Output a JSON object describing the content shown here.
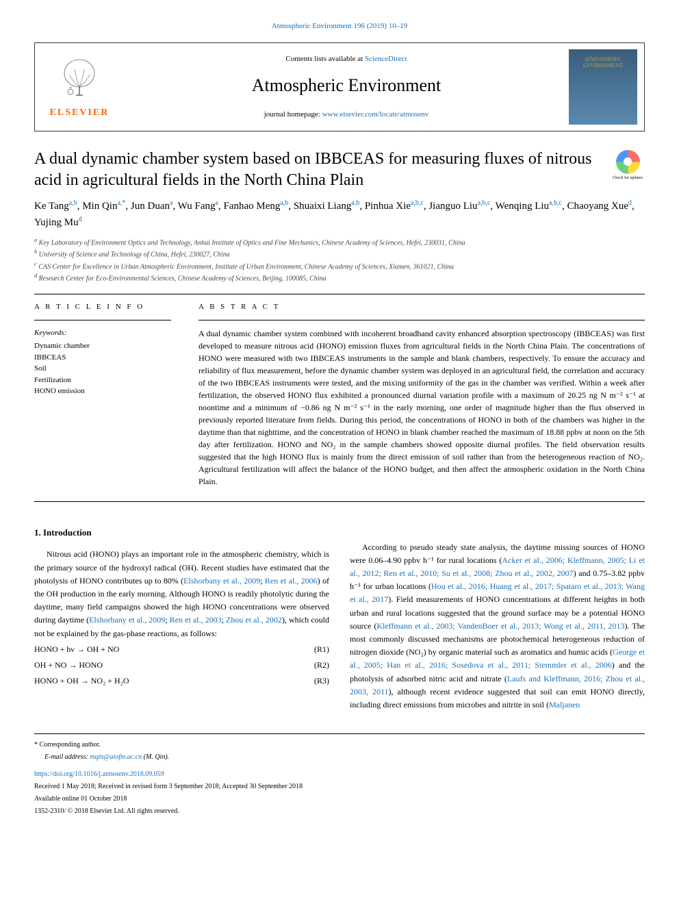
{
  "top_link": "Atmospheric Environment 196 (2019) 10–19",
  "header": {
    "contents_text": "Contents lists available at ",
    "contents_link": "ScienceDirect",
    "journal_name": "Atmospheric Environment",
    "homepage_label": "journal homepage: ",
    "homepage_link": "www.elsevier.com/locate/atmosenv",
    "elsevier_label": "ELSEVIER",
    "cover_title": "ATMOSPHERIC ENVIRONMENT"
  },
  "article": {
    "title": "A dual dynamic chamber system based on IBBCEAS for measuring fluxes of nitrous acid in agricultural fields in the North China Plain",
    "check_updates": "Check for updates"
  },
  "authors_html": "Ke Tang<sup class='sup'>a,b</sup>, Min Qin<sup class='sup'>a,*</sup>, Jun Duan<sup class='sup'>a</sup>, Wu Fang<sup class='sup'>a</sup>, Fanhao Meng<sup class='sup'>a,b</sup>, Shuaixi Liang<sup class='sup'>a,b</sup>, Pinhua Xie<sup class='sup'>a,b,c</sup>, Jianguo Liu<sup class='sup'>a,b,c</sup>, Wenqing Liu<sup class='sup'>a,b,c</sup>, Chaoyang Xue<sup class='sup'>d</sup>, Yujing Mu<sup class='sup'>d</sup>",
  "affiliations": [
    "a Key Laboratory of Environment Optics and Technology, Anhui Institute of Optics and Fine Mechanics, Chinese Academy of Sciences, Hefei, 230031, China",
    "b University of Science and Technology of China, Hefei, 230027, China",
    "c CAS Center for Excellence in Urban Atmospheric Environment, Institute of Urban Environment, Chinese Academy of Sciences, Xiamen, 361021, China",
    "d Research Center for Eco-Environmental Sciences, Chinese Academy of Sciences, Beijing, 100085, China"
  ],
  "article_info_label": "A R T I C L E  I N F O",
  "abstract_label": "A B S T R A C T",
  "keywords_label": "Keywords:",
  "keywords": [
    "Dynamic chamber",
    "IBBCEAS",
    "Soil",
    "Fertilization",
    "HONO emission"
  ],
  "abstract": "A dual dynamic chamber system combined with incoherent broadband cavity enhanced absorption spectroscopy (IBBCEAS) was first developed to measure nitrous acid (HONO) emission fluxes from agricultural fields in the North China Plain. The concentrations of HONO were measured with two IBBCEAS instruments in the sample and blank chambers, respectively. To ensure the accuracy and reliability of flux measurement, before the dynamic chamber system was deployed in an agricultural field, the correlation and accuracy of the two IBBCEAS instruments were tested, and the mixing uniformity of the gas in the chamber was verified. Within a week after fertilization, the observed HONO flux exhibited a pronounced diurnal variation profile with a maximum of 20.25 ng N m⁻² s⁻¹ at noontime and a minimum of −0.86 ng N m⁻² s⁻¹ in the early morning, one order of magnitude higher than the flux observed in previously reported literature from fields. During this period, the concentrations of HONO in both of the chambers was higher in the daytime than that nighttime, and the concentration of HONO in blank chamber reached the maximum of 18.88 ppbv at noon on the 5th day after fertilization. HONO and NO₂ in the sample chambers showed opposite diurnal profiles. The field observation results suggested that the high HONO flux is mainly from the direct emission of soil rather than from the heterogeneous reaction of NO₂. Agricultural fertilization will affect the balance of the HONO budget, and then affect the atmospheric oxidation in the North China Plain.",
  "intro_heading": "1. Introduction",
  "col1": {
    "p1": "Nitrous acid (HONO) plays an important role in the atmospheric chemistry, which is the primary source of the hydroxyl radical (OH). Recent studies have estimated that the photolysis of HONO contributes up to 80% (",
    "p1_ref1": "Elshorbany et al., 2009",
    "p1_mid": "; ",
    "p1_ref2": "Ren et al., 2006",
    "p1_end": ") of the OH production in the early morning. Although HONO is readily photolytic during the daytime, many field campaigns showed the high HONO concentrations were observed during daytime (",
    "p1_ref3": "Elshorbany et al., 2009",
    "p1_mid2": "; ",
    "p1_ref4": "Ren et al., 2003",
    "p1_mid3": "; ",
    "p1_ref5": "Zhou et al., 2002",
    "p1_end2": "), which could not be explained by the gas-phase reactions, as follows:",
    "eq1": "HONO + hν → OH + NO",
    "eq1_num": "(R1)",
    "eq2": "OH + NO → HONO",
    "eq2_num": "(R2)",
    "eq3": "HONO + OH → NO₂ + H₂O",
    "eq3_num": "(R3)"
  },
  "col2": {
    "p1": "According to pseudo steady state analysis, the daytime missing sources of HONO were 0.06–4.90 ppbv h⁻¹ for rural locations (",
    "refs1": "Acker et al., 2006; Kleffmann, 2005; Li et al., 2012; Ren et al., 2010; Su et al., 2008; Zhou et al., 2002, 2007",
    "p1_mid": ") and 0.75–3.82 ppbv h⁻¹ for urban locations (",
    "refs2": "Hou et al., 2016; Huang et al., 2017; Spataro et al., 2013; Wang et al., 2017",
    "p1_mid2": "). Field measurements of HONO concentrations at different heights in both urban and rural locations suggested that the ground surface may be a potential HONO source (",
    "refs3": "Kleffmann et al., 2003; VandenBoer et al., 2013; Wong et al., 2011, 2013",
    "p1_mid3": "). The most commonly discussed mechanisms are photochemical heterogeneous reduction of nitrogen dioxide (NO₂) by organic material such as aromatics and humic acids (",
    "refs4": "George et al., 2005; Han et al., 2016; Sosedova et al., 2011; Stemmler et al., 2006",
    "p1_mid4": ") and the photolysis of adsorbed nitric acid and nitrate (",
    "refs5": "Laufs and Kleffmann, 2016; Zhou et al., 2003, 2011",
    "p1_end": "), although recent evidence suggested that soil can emit HONO directly, including direct emissions from microbes and nitrite in soil (",
    "refs6": "Maljanen"
  },
  "footer": {
    "corr": "* Corresponding author.",
    "email_label": "E-mail address: ",
    "email": "mqin@aiofm.ac.cn",
    "email_name": " (M. Qin).",
    "doi": "https://doi.org/10.1016/j.atmosenv.2018.09.059",
    "received": "Received 1 May 2018; Received in revised form 3 September 2018; Accepted 30 September 2018",
    "available": "Available online 01 October 2018",
    "copyright": "1352-2310/ © 2018 Elsevier Ltd. All rights reserved."
  },
  "colors": {
    "link": "#1a6fb8",
    "elsevier_orange": "#ff6600",
    "text": "#000000",
    "affil_gray": "#444444"
  }
}
